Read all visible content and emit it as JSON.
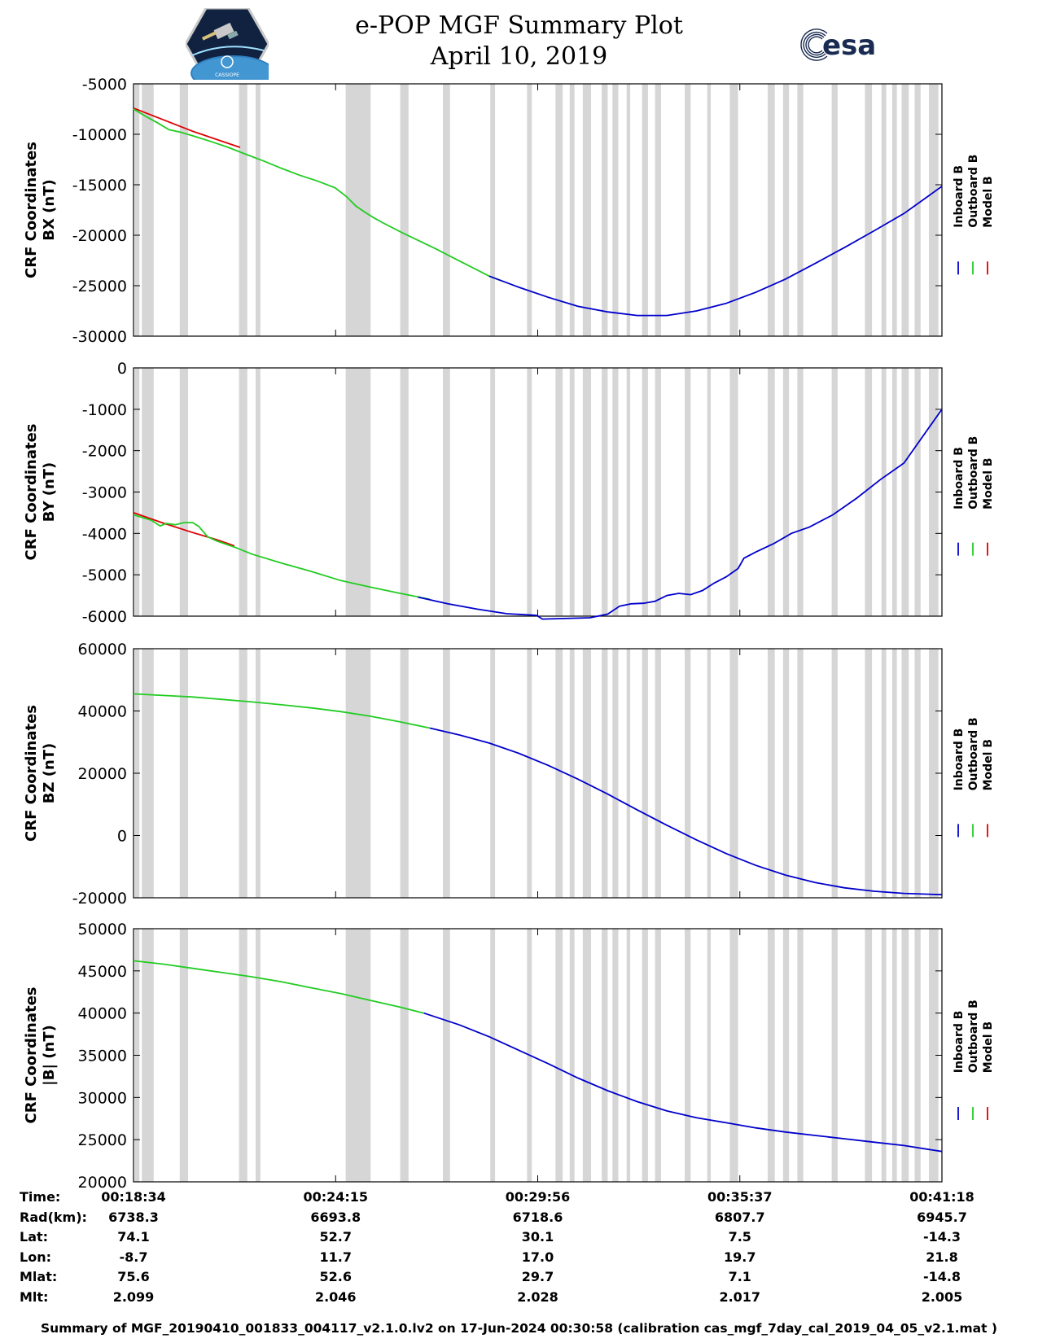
{
  "header": {
    "title_line1": "e-POP MGF Summary Plot",
    "title_line2": "April 10, 2019",
    "logo_left_text": "CASSIOPE",
    "logo_right_text": "esa"
  },
  "legend": {
    "entries": [
      {
        "name": "Inboard B",
        "color": "#0000cc"
      },
      {
        "name": "Outboard B",
        "color": "#22cc22"
      },
      {
        "name": "Model B",
        "color": "#dd0000"
      }
    ]
  },
  "gap_color": "#d6d6d6",
  "chart_data": [
    {
      "type": "line",
      "ylabel": "CRF Coordinates",
      "ylabel2": "BX (nT)",
      "ylim": [
        -30000,
        -5000
      ],
      "yticks": [
        -5000,
        -10000,
        -15000,
        -20000,
        -25000,
        -30000
      ],
      "ytick_labels": [
        "-5000",
        "-10000",
        "-15000",
        "-20000",
        "-25000",
        "-30000"
      ],
      "xlim": [
        0,
        1364
      ],
      "xticks": [
        0,
        341,
        682,
        1023,
        1364
      ],
      "xtick_labels": [
        "00:18:34",
        "00:24:15",
        "00:29:56",
        "00:35:37",
        "00:41:18"
      ],
      "series": [
        {
          "name": "Model B",
          "x": [
            0,
            100,
            180
          ],
          "y": [
            -7400,
            -9700,
            -11300
          ]
        },
        {
          "name": "Outboard B",
          "x": [
            0,
            20,
            40,
            60,
            80,
            100,
            130,
            160,
            190,
            220,
            250,
            280,
            310,
            340,
            360,
            375,
            390,
            405,
            420,
            450,
            480,
            510,
            540,
            570,
            600,
            620
          ],
          "y": [
            -7500,
            -8200,
            -8850,
            -9550,
            -9800,
            -10150,
            -10700,
            -11300,
            -11980,
            -12650,
            -13380,
            -14050,
            -14620,
            -15300,
            -16200,
            -17100,
            -17700,
            -18250,
            -18750,
            -19650,
            -20500,
            -21350,
            -22250,
            -23150,
            -24050,
            -24500
          ]
        },
        {
          "name": "Inboard B",
          "x": [
            600,
            650,
            700,
            750,
            800,
            850,
            900,
            950,
            1000,
            1050,
            1100,
            1150,
            1200,
            1250,
            1300,
            1364
          ],
          "y": [
            -24050,
            -25150,
            -26150,
            -27050,
            -27600,
            -27950,
            -27950,
            -27500,
            -26750,
            -25650,
            -24350,
            -22800,
            -21200,
            -19550,
            -17850,
            -15150
          ]
        }
      ]
    },
    {
      "type": "line",
      "ylabel": "CRF Coordinates",
      "ylabel2": "BY (nT)",
      "ylim": [
        -6000,
        0
      ],
      "yticks": [
        0,
        -1000,
        -2000,
        -3000,
        -4000,
        -5000,
        -6000
      ],
      "ytick_labels": [
        "0",
        "-1000",
        "-2000",
        "-3000",
        "-4000",
        "-5000",
        "-6000"
      ],
      "xlim": [
        0,
        1364
      ],
      "xticks": [
        0,
        341,
        682,
        1023,
        1364
      ],
      "xtick_labels": [
        "00:18:34",
        "00:24:15",
        "00:29:56",
        "00:35:37",
        "00:41:18"
      ],
      "series": [
        {
          "name": "Model B",
          "x": [
            0,
            50,
            100,
            140,
            170
          ],
          "y": [
            -3500,
            -3750,
            -3980,
            -4150,
            -4300
          ]
        },
        {
          "name": "Outboard B",
          "x": [
            0,
            30,
            45,
            55,
            70,
            85,
            100,
            110,
            125,
            140,
            170,
            200,
            250,
            300,
            350,
            400,
            450,
            500
          ],
          "y": [
            -3550,
            -3680,
            -3820,
            -3760,
            -3790,
            -3740,
            -3740,
            -3830,
            -4080,
            -4180,
            -4330,
            -4500,
            -4720,
            -4920,
            -5140,
            -5300,
            -5450,
            -5590
          ]
        },
        {
          "name": "Inboard B",
          "x": [
            480,
            530,
            580,
            630,
            680,
            690,
            720,
            770,
            800,
            820,
            840,
            860,
            880,
            900,
            920,
            940,
            960,
            980,
            1000,
            1020,
            1030,
            1050,
            1080,
            1110,
            1140,
            1180,
            1220,
            1260,
            1300,
            1364
          ],
          "y": [
            -5540,
            -5700,
            -5830,
            -5940,
            -5980,
            -6070,
            -6060,
            -6040,
            -5950,
            -5760,
            -5700,
            -5690,
            -5640,
            -5500,
            -5450,
            -5480,
            -5380,
            -5200,
            -5050,
            -4850,
            -4600,
            -4450,
            -4250,
            -4000,
            -3850,
            -3550,
            -3150,
            -2700,
            -2300,
            -1000
          ]
        }
      ]
    },
    {
      "type": "line",
      "ylabel": "CRF Coordinates",
      "ylabel2": "BZ (nT)",
      "ylim": [
        -20000,
        60000
      ],
      "yticks": [
        60000,
        40000,
        20000,
        0,
        -20000
      ],
      "ytick_labels": [
        "60000",
        "40000",
        "20000",
        "0",
        "-20000"
      ],
      "xlim": [
        0,
        1364
      ],
      "xticks": [
        0,
        341,
        682,
        1023,
        1364
      ],
      "xtick_labels": [
        "00:18:34",
        "00:24:15",
        "00:29:56",
        "00:35:37",
        "00:41:18"
      ],
      "series": [
        {
          "name": "Outboard B",
          "x": [
            0,
            50,
            100,
            150,
            200,
            250,
            300,
            350,
            400,
            450,
            500
          ],
          "y": [
            45500,
            45000,
            44500,
            43700,
            42900,
            42000,
            41000,
            39800,
            38300,
            36500,
            34500
          ]
        },
        {
          "name": "Inboard B",
          "x": [
            500,
            550,
            600,
            650,
            700,
            750,
            800,
            850,
            900,
            950,
            1000,
            1050,
            1100,
            1150,
            1200,
            1250,
            1300,
            1364
          ],
          "y": [
            34500,
            32300,
            29700,
            26400,
            22500,
            18100,
            13300,
            8200,
            3300,
            -1400,
            -5800,
            -9600,
            -12700,
            -15100,
            -16800,
            -17900,
            -18600,
            -19000
          ]
        }
      ]
    },
    {
      "type": "line",
      "ylabel": "CRF Coordinates",
      "ylabel2": "|B| (nT)",
      "ylim": [
        20000,
        50000
      ],
      "yticks": [
        50000,
        45000,
        40000,
        35000,
        30000,
        25000,
        20000
      ],
      "ytick_labels": [
        "50000",
        "45000",
        "40000",
        "35000",
        "30000",
        "25000",
        "20000"
      ],
      "xlim": [
        0,
        1364
      ],
      "xticks": [
        0,
        341,
        682,
        1023,
        1364
      ],
      "xtick_labels": [
        "00:18:34",
        "00:24:15",
        "00:29:56",
        "00:35:37",
        "00:41:18"
      ],
      "series": [
        {
          "name": "Outboard B",
          "x": [
            0,
            50,
            100,
            150,
            200,
            250,
            300,
            350,
            400,
            450,
            490
          ],
          "y": [
            46200,
            45800,
            45300,
            44800,
            44300,
            43700,
            43000,
            42300,
            41500,
            40700,
            40000
          ]
        },
        {
          "name": "Inboard B",
          "x": [
            490,
            550,
            600,
            650,
            700,
            750,
            800,
            850,
            900,
            950,
            1000,
            1050,
            1100,
            1150,
            1200,
            1250,
            1300,
            1364
          ],
          "y": [
            40000,
            38600,
            37200,
            35600,
            34000,
            32300,
            30800,
            29500,
            28400,
            27600,
            27000,
            26400,
            25900,
            25500,
            25100,
            24700,
            24300,
            23600
          ]
        }
      ]
    }
  ],
  "data_gaps": [
    [
      2,
      10
    ],
    [
      14,
      34
    ],
    [
      78,
      92
    ],
    [
      178,
      192
    ],
    [
      206,
      214
    ],
    [
      358,
      400
    ],
    [
      450,
      464
    ],
    [
      522,
      534
    ],
    [
      602,
      610
    ],
    [
      664,
      672
    ],
    [
      712,
      724
    ],
    [
      736,
      744
    ],
    [
      758,
      772
    ],
    [
      790,
      800
    ],
    [
      808,
      818
    ],
    [
      832,
      838
    ],
    [
      858,
      868
    ],
    [
      880,
      890
    ],
    [
      930,
      940
    ],
    [
      968,
      974
    ],
    [
      1006,
      1020
    ],
    [
      1070,
      1082
    ],
    [
      1096,
      1106
    ],
    [
      1120,
      1130
    ],
    [
      1178,
      1188
    ],
    [
      1234,
      1246
    ],
    [
      1262,
      1270
    ],
    [
      1280,
      1288
    ],
    [
      1296,
      1308
    ],
    [
      1318,
      1328
    ],
    [
      1342,
      1358
    ]
  ],
  "stats": {
    "labels": [
      "Time:",
      "Rad(km):",
      "Lat:",
      "Lon:",
      "Mlat:",
      "Mlt:"
    ],
    "columns": [
      [
        "00:18:34",
        "6738.3",
        "74.1",
        "-8.7",
        "75.6",
        "2.099"
      ],
      [
        "00:24:15",
        "6693.8",
        "52.7",
        "11.7",
        "52.6",
        "2.046"
      ],
      [
        "00:29:56",
        "6718.6",
        "30.1",
        "17.0",
        "29.7",
        "2.028"
      ],
      [
        "00:35:37",
        "6807.7",
        "7.5",
        "19.7",
        "7.1",
        "2.017"
      ],
      [
        "00:41:18",
        "6945.7",
        "-14.3",
        "21.8",
        "-14.8",
        "2.005"
      ]
    ]
  },
  "footer": "Summary of MGF_20190410_001833_004117_v2.1.0.lv2 on 17-Jun-2024 00:30:58 (calibration cas_mgf_7day_cal_2019_04_05_v2.1.mat )"
}
